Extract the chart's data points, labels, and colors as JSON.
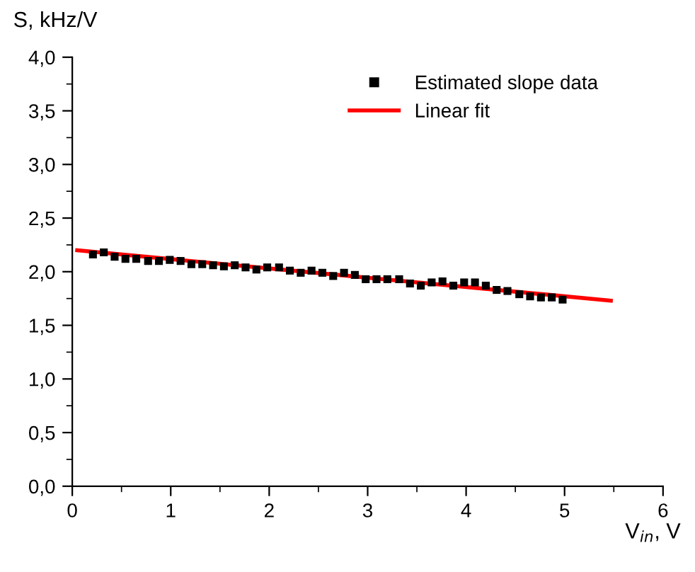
{
  "chart_data": {
    "type": "scatter",
    "xlabel": "V$_{in}$, V",
    "ylabel": "S, kHz/V",
    "series": [
      {
        "name": "Estimated slope data",
        "color": "#000000",
        "marker": "square",
        "x": [
          0.21,
          0.32,
          0.43,
          0.54,
          0.65,
          0.77,
          0.88,
          0.99,
          1.1,
          1.21,
          1.32,
          1.43,
          1.54,
          1.65,
          1.76,
          1.87,
          1.98,
          2.1,
          2.21,
          2.32,
          2.43,
          2.54,
          2.65,
          2.76,
          2.87,
          2.98,
          3.09,
          3.2,
          3.32,
          3.43,
          3.54,
          3.65,
          3.76,
          3.87,
          3.98,
          4.09,
          4.2,
          4.31,
          4.42,
          4.54,
          4.65,
          4.76,
          4.87,
          4.98
        ],
        "values": [
          2.16,
          2.18,
          2.14,
          2.12,
          2.12,
          2.1,
          2.1,
          2.11,
          2.1,
          2.07,
          2.07,
          2.06,
          2.05,
          2.06,
          2.04,
          2.02,
          2.04,
          2.04,
          2.01,
          1.99,
          2.01,
          1.99,
          1.96,
          1.99,
          1.97,
          1.93,
          1.93,
          1.93,
          1.93,
          1.89,
          1.87,
          1.9,
          1.91,
          1.87,
          1.9,
          1.9,
          1.87,
          1.83,
          1.82,
          1.79,
          1.77,
          1.76,
          1.76,
          1.74
        ]
      },
      {
        "name": "Linear fit",
        "type": "line",
        "color": "#ff0000",
        "marker": "none",
        "line_style": "solid",
        "x": [
          0.05,
          5.47
        ],
        "values": [
          2.2,
          1.73
        ]
      }
    ],
    "xlim": [
      0,
      6
    ],
    "ylim": [
      0,
      4
    ],
    "xticks": [
      0,
      {
        "value": 0.5,
        "label": null
      },
      1,
      {
        "value": 1.5,
        "label": null
      },
      2,
      {
        "value": 2.5,
        "label": null
      },
      3,
      {
        "value": 3.5,
        "label": null
      },
      4,
      {
        "value": 4.5,
        "label": null
      },
      5,
      {
        "value": 5.5,
        "label": null
      },
      6
    ],
    "yticks": [
      {
        "value": 0,
        "label": "0,0"
      },
      {
        "value": 0.25,
        "label": null
      },
      {
        "value": 0.5,
        "label": "0,5"
      },
      {
        "value": 0.75,
        "label": null
      },
      {
        "value": 1,
        "label": "1,0"
      },
      {
        "value": 1.25,
        "label": null
      },
      {
        "value": 1.5,
        "label": "1,5"
      },
      {
        "value": 1.75,
        "label": null
      },
      {
        "value": 2,
        "label": "2,0"
      },
      {
        "value": 2.25,
        "label": null
      },
      {
        "value": 2.5,
        "label": "2,5"
      },
      {
        "value": 2.75,
        "label": null
      },
      {
        "value": 3,
        "label": "3,0"
      },
      {
        "value": 3.25,
        "label": null
      },
      {
        "value": 3.5,
        "label": "3,5"
      },
      {
        "value": 3.75,
        "label": null
      },
      {
        "value": 4,
        "label": "4,0"
      }
    ],
    "grid": false,
    "legend": "top right"
  }
}
